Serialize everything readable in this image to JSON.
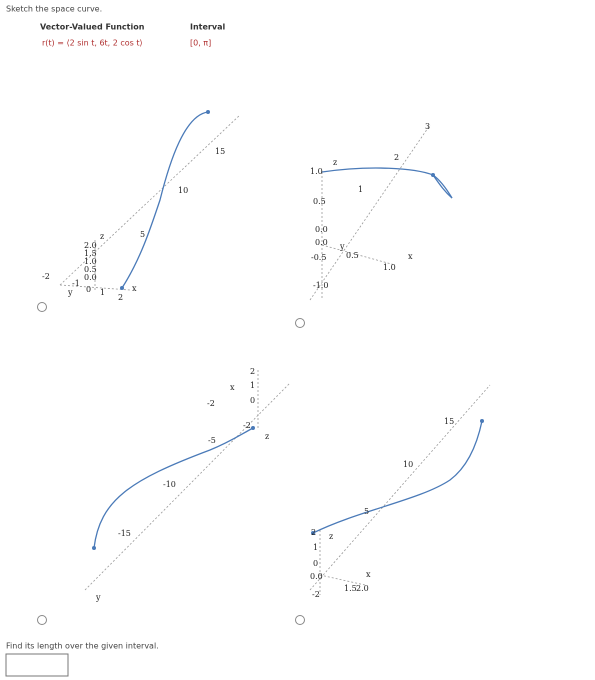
{
  "instruction": "Sketch the space curve.",
  "table": {
    "headers": [
      "Vector-Valued Function",
      "Interval"
    ],
    "rows": [
      [
        "r(t) = ⟨2 sin t, 6t, 2 cos t⟩",
        "[0, π]"
      ]
    ]
  },
  "options": [
    {
      "labels": [
        "15",
        "10",
        "5",
        "z",
        "x",
        "y",
        "-2",
        "1",
        "2",
        "2.0",
        "1.5",
        "1.0",
        "0.5",
        "0.0",
        "-1",
        "0"
      ]
    },
    {
      "labels": [
        "3",
        "2",
        "1",
        "z",
        "1.0",
        "0.5",
        "0.0",
        "0.0",
        "y",
        "-0.5",
        "0.5",
        "1.0",
        "x",
        "-1.0"
      ]
    },
    {
      "labels": [
        "2",
        "1",
        "x",
        "-2",
        "0",
        "-2",
        "z",
        "-5",
        "-10",
        "-15",
        "y"
      ]
    },
    {
      "labels": [
        "15",
        "10",
        "5",
        "2",
        "z",
        "1",
        "0",
        "x",
        "-2",
        "0.0",
        "1.5",
        "2.0"
      ]
    }
  ],
  "question": "Find its length over the given interval."
}
